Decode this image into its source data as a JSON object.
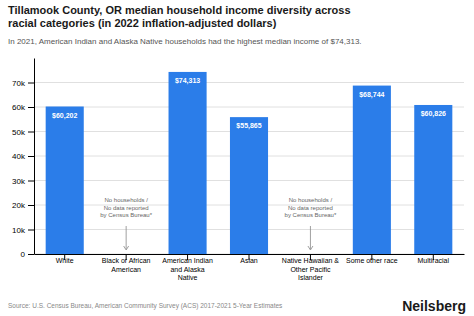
{
  "chart_data": {
    "type": "bar",
    "title": "Tillamook County, OR median household income diversity across\nracial categories (in 2022 inflation-adjusted dollars)",
    "subtitle": "In 2021, American Indian and Alaska Native households had the highest median income of $74,313.",
    "categories": [
      "White",
      "Black or African\nAmerican",
      "American Indian\nand Alaska\nNative",
      "Asian",
      "Native Hawaiian &\nOther Pacific\nIslander",
      "Some other race",
      "Multiracial"
    ],
    "values": [
      60202,
      0,
      74313,
      55865,
      0,
      68744,
      60826
    ],
    "value_labels": [
      "$60,202",
      null,
      "$74,313",
      "$55,865",
      null,
      "$68,744",
      "$60,826"
    ],
    "data_labels": true,
    "color": "#2b7de9",
    "ylim": [
      0,
      80000
    ],
    "yticks": [
      0,
      {
        "value": 10000,
        "label": "10k"
      },
      {
        "value": 20000,
        "label": "20k"
      },
      {
        "value": 30000,
        "label": "30k"
      },
      {
        "value": 40000,
        "label": "40k"
      },
      {
        "value": 50000,
        "label": "50k"
      },
      {
        "value": 60000,
        "label": "60k"
      },
      {
        "value": 70000,
        "label": "70k"
      }
    ],
    "grid": true,
    "annotations": [
      {
        "category": "Black or African\nAmerican",
        "text": "No households /\nNo data reported\nby Census Bureau*"
      },
      {
        "category": "Native Hawaiian &\nOther Pacific\nIslander",
        "text": "No households /\nNo data reported\nby Census Bureau*"
      }
    ],
    "source": "Source: U.S. Census Bureau, American Community Survey (ACS) 2017-2021 5-Year Estimates",
    "brand": "Neilsberg"
  }
}
